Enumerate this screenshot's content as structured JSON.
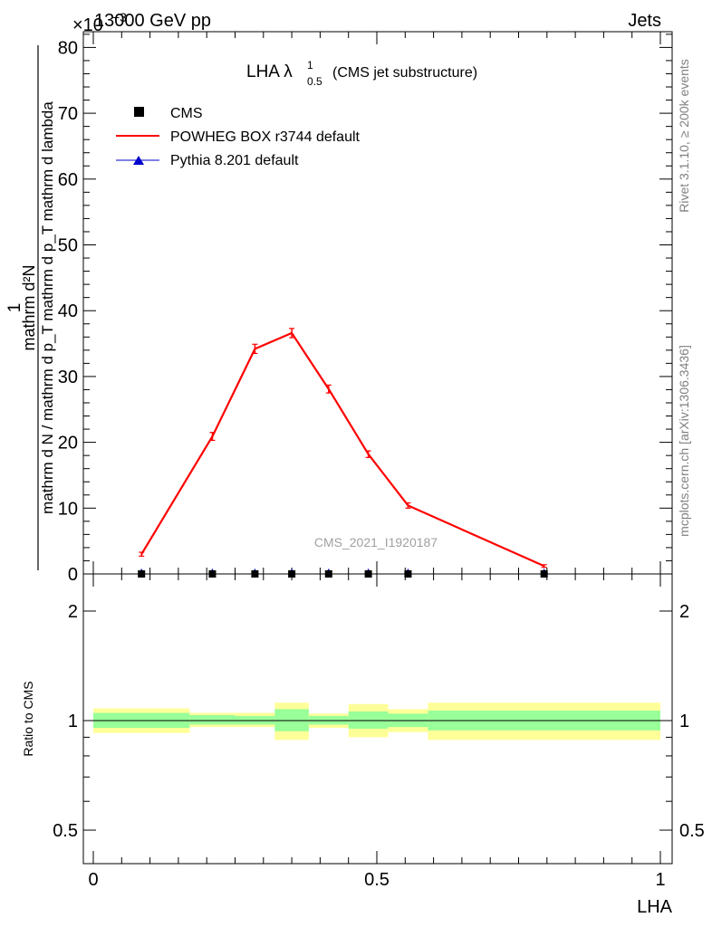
{
  "header": {
    "left": "13000 GeV pp",
    "right": "Jets",
    "multiplier_base": "×10",
    "multiplier_exp": "−3"
  },
  "side_labels": {
    "top": "Rivet 3.1.10, ≥ 200k events",
    "bottom": "mcplots.cern.ch [arXiv:1306.3436]"
  },
  "watermark": "CMS_2021_I1920187",
  "plot_title": {
    "main": "LHA λ",
    "sub": "0.5",
    "sup": "1",
    "note": "(CMS jet substructure)"
  },
  "y_label": {
    "numerator_one": "1",
    "numerator_rest": "mathrm d²N",
    "denominator": "mathrm d N / mathrm d p_T mathrm d p_T mathrm d lambda",
    "full": "1 / (mathrm d N / mathrm d p_T) · mathrm d²N / (mathrm d p_T mathrm d lambda)"
  },
  "legend": [
    {
      "label": "CMS",
      "marker": "square",
      "color": "#000000"
    },
    {
      "label": "POWHEG BOX r3744 default",
      "marker": "line",
      "color": "#ff0000"
    },
    {
      "label": "Pythia 8.201 default",
      "marker": "triangle",
      "color": "#0000cc"
    }
  ],
  "ratio_label": "Ratio to CMS",
  "x_axis_label": "LHA",
  "colors": {
    "powheg": "#ff0000",
    "pythia": "#0000cc",
    "data": "#000000",
    "band_inner": "#99ff99",
    "band_outer": "#ffff99"
  },
  "chart_data": [
    {
      "type": "line",
      "panel": "main",
      "xlabel": "LHA",
      "ylabel": "1 / (mathrm d N / mathrm d p_T) · mathrm d²N / (mathrm d p_T mathrm d lambda)",
      "xlim": [
        0,
        1
      ],
      "ylim": [
        0,
        0.083
      ],
      "y_multiplier": "×10^-3",
      "y_ticks": [
        0,
        10,
        20,
        30,
        40,
        50,
        60,
        70,
        80
      ],
      "x_ticks": [
        "0",
        "0.5",
        "1"
      ],
      "series": [
        {
          "name": "POWHEG BOX r3744 default",
          "x": [
            0.085,
            0.21,
            0.285,
            0.35,
            0.415,
            0.485,
            0.555,
            0.795
          ],
          "y": [
            3.0,
            20.9,
            34.2,
            36.6,
            28.1,
            18.2,
            10.4,
            1.2
          ],
          "yerr": [
            0.3,
            0.6,
            0.7,
            0.7,
            0.6,
            0.5,
            0.4,
            0.2
          ]
        },
        {
          "name": "Pythia 8.201 default",
          "x": [
            0.085,
            0.21,
            0.285,
            0.35,
            0.415,
            0.485,
            0.555,
            0.795
          ],
          "y": [
            0.0,
            0.0,
            0.0,
            0.0,
            0.0,
            0.0,
            0.0,
            0.0
          ]
        },
        {
          "name": "CMS",
          "x": [
            0.085,
            0.21,
            0.285,
            0.35,
            0.415,
            0.485,
            0.555,
            0.795
          ],
          "y": [
            0.0,
            0.0,
            0.0,
            0.0,
            0.0,
            0.0,
            0.0,
            0.0
          ]
        }
      ]
    },
    {
      "type": "area",
      "panel": "ratio",
      "ylabel": "Ratio to CMS",
      "xlim": [
        0,
        1
      ],
      "ylim": [
        0.4,
        2.4
      ],
      "log_scale": true,
      "y_ticks": [
        "0.5",
        "1",
        "2"
      ],
      "x_ticks": [
        "0",
        "0.5",
        "1"
      ],
      "reference": 1.0,
      "bins": [
        {
          "lo": 0.0,
          "hi": 0.17,
          "inner": [
            0.955,
            1.05
          ],
          "outer": [
            0.925,
            1.08
          ]
        },
        {
          "lo": 0.17,
          "hi": 0.25,
          "inner": [
            0.975,
            1.035
          ],
          "outer": [
            0.96,
            1.05
          ]
        },
        {
          "lo": 0.25,
          "hi": 0.32,
          "inner": [
            0.975,
            1.03
          ],
          "outer": [
            0.96,
            1.05
          ]
        },
        {
          "lo": 0.32,
          "hi": 0.38,
          "inner": [
            0.935,
            1.075
          ],
          "outer": [
            0.885,
            1.12
          ]
        },
        {
          "lo": 0.38,
          "hi": 0.45,
          "inner": [
            0.975,
            1.03
          ],
          "outer": [
            0.955,
            1.045
          ]
        },
        {
          "lo": 0.45,
          "hi": 0.52,
          "inner": [
            0.95,
            1.06
          ],
          "outer": [
            0.9,
            1.11
          ]
        },
        {
          "lo": 0.52,
          "hi": 0.59,
          "inner": [
            0.96,
            1.045
          ],
          "outer": [
            0.93,
            1.075
          ]
        },
        {
          "lo": 0.59,
          "hi": 1.0,
          "inner": [
            0.94,
            1.065
          ],
          "outer": [
            0.885,
            1.12
          ]
        }
      ]
    }
  ]
}
